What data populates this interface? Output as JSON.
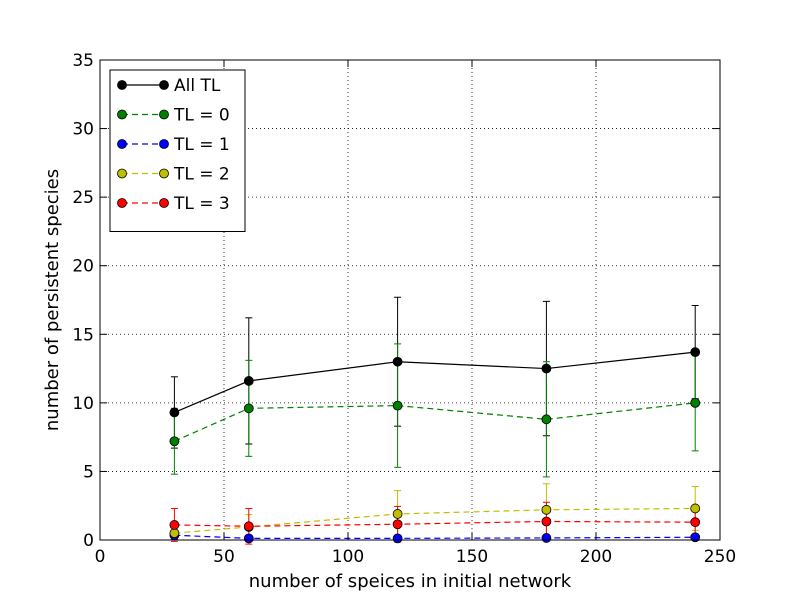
{
  "chart_data": {
    "type": "line",
    "xlabel": "number of speices in initial network",
    "ylabel": "number of persistent species",
    "xlim": [
      0,
      250
    ],
    "ylim": [
      0,
      35
    ],
    "xticks": [
      0,
      50,
      100,
      150,
      200,
      250
    ],
    "yticks": [
      0,
      5,
      10,
      15,
      20,
      25,
      30,
      35
    ],
    "grid": true,
    "legend_position": "top-left",
    "x": [
      30,
      60,
      120,
      180,
      240
    ],
    "series": [
      {
        "name": "All TL",
        "color": "#000000",
        "dashed": false,
        "values": [
          9.3,
          11.6,
          13.0,
          12.5,
          13.7
        ],
        "errors": [
          2.6,
          4.6,
          4.7,
          4.9,
          3.4
        ]
      },
      {
        "name": "TL = 0",
        "color": "#008000",
        "dashed": true,
        "values": [
          7.2,
          9.6,
          9.8,
          8.8,
          10.0
        ],
        "errors": [
          2.4,
          3.5,
          4.5,
          4.2,
          3.5
        ]
      },
      {
        "name": "TL = 1",
        "color": "#0000ff",
        "dashed": true,
        "values": [
          0.35,
          0.12,
          0.12,
          0.15,
          0.2
        ],
        "errors": [
          0.3,
          0.12,
          0.12,
          0.15,
          0.2
        ]
      },
      {
        "name": "TL = 2",
        "color": "#bfbf00",
        "dashed": true,
        "values": [
          0.5,
          0.95,
          1.9,
          2.2,
          2.3
        ],
        "errors": [
          0.4,
          0.9,
          1.7,
          1.9,
          1.6
        ]
      },
      {
        "name": "TL = 3",
        "color": "#ff0000",
        "dashed": true,
        "values": [
          1.1,
          1.0,
          1.15,
          1.35,
          1.3
        ],
        "errors": [
          1.2,
          1.3,
          1.3,
          1.4,
          1.2
        ]
      }
    ]
  }
}
